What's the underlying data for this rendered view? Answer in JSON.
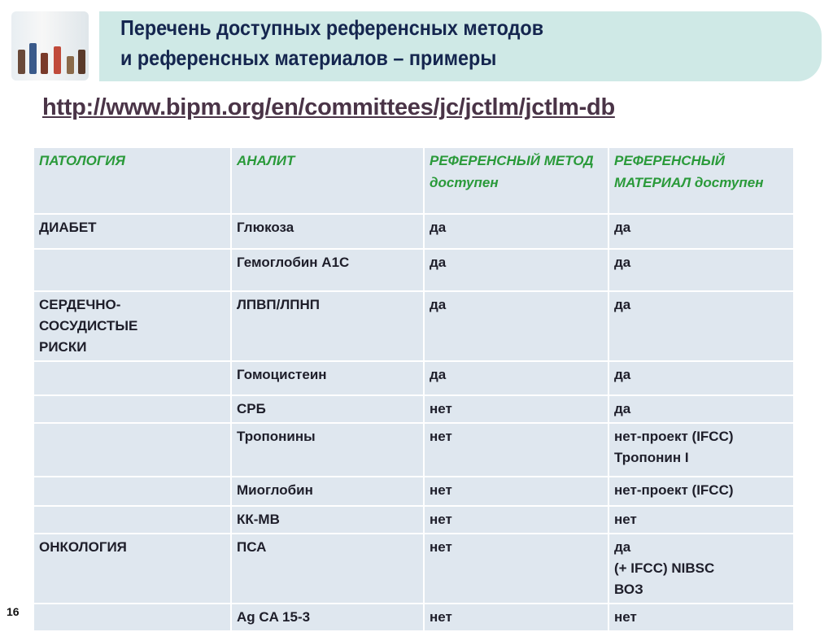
{
  "slide": {
    "title_line1": "Перечень доступных референсных методов",
    "title_line2": "и референсных материалов – примеры",
    "url": "http://www.bipm.org/en/committees/jc/jctlm/jctlm-db",
    "page_number": "16"
  },
  "table": {
    "headers": [
      "ПАТОЛОГИЯ",
      "АНАЛИТ",
      "РЕФЕРЕНСНЫЙ МЕТОД доступен",
      "РЕФЕРЕНСНЫЙ МАТЕРИАЛ доступен"
    ],
    "rows": [
      [
        "ДИАБЕТ",
        "Глюкоза",
        "да",
        "да"
      ],
      [
        "",
        "Гемоглобин А1С",
        "да",
        "да"
      ],
      [
        "СЕРДЕЧНО-\nСОСУДИСТЫЕ\nРИСКИ",
        "ЛПВП/ЛПНП",
        "да",
        "да"
      ],
      [
        "",
        "Гомоцистеин",
        "да",
        "да"
      ],
      [
        "",
        "СРБ",
        "нет",
        "да"
      ],
      [
        "",
        "Тропонины",
        "нет",
        "нет-проект (IFCC)\nТропонин I"
      ],
      [
        "",
        "Миоглобин",
        "нет",
        "нет-проект (IFCC)"
      ],
      [
        "",
        "КК-МВ",
        "нет",
        "нет"
      ],
      [
        "ОНКОЛОГИЯ",
        "ПСА",
        "нет",
        "да\n (+ IFCC) NIBSC\nВОЗ"
      ],
      [
        "",
        "Ag CA 15-3",
        "нет",
        "нет"
      ]
    ]
  },
  "colors": {
    "banner": "#cfe9e6",
    "title": "#15264f",
    "header_text": "#2a9a3a",
    "cell_bg": "#dfe7ef"
  }
}
